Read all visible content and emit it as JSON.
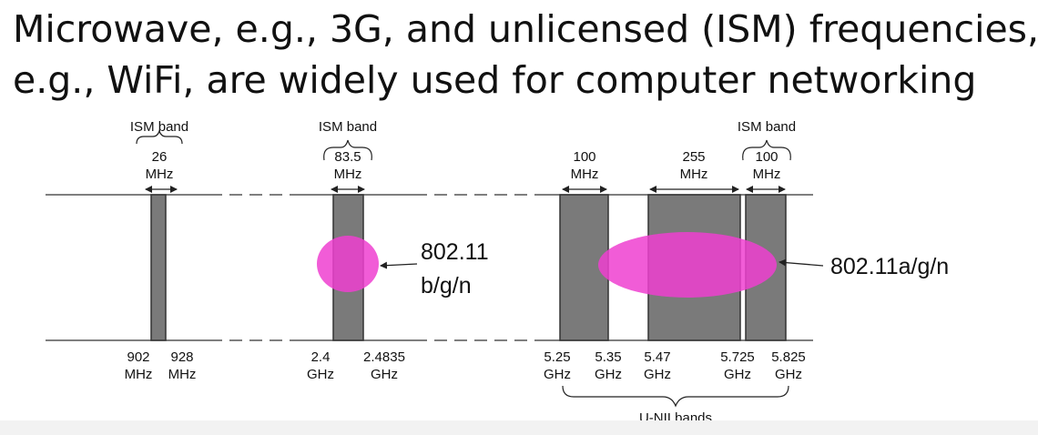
{
  "title": {
    "line1": "Microwave, e.g., 3G, and unlicensed (ISM) frequencies,",
    "line2": "e.g., WiFi, are widely used for computer networking"
  },
  "top_labels": {
    "ism_band_1": "ISM band",
    "width_26_value": "26",
    "width_26_unit": "MHz",
    "ism_band_2": "ISM band",
    "width_835_value": "83.5",
    "width_835_unit": "MHz",
    "width_100a_value": "100",
    "width_100a_unit": "MHz",
    "width_255_value": "255",
    "width_255_unit": "MHz",
    "ism_band_3": "ISM band",
    "width_100b_value": "100",
    "width_100b_unit": "MHz"
  },
  "bottom_labels": {
    "f902_value": "902",
    "f902_unit": "MHz",
    "f928_value": "928",
    "f928_unit": "MHz",
    "f24_value": "2.4",
    "f24_unit": "GHz",
    "f24835_value": "2.4835",
    "f24835_unit": "GHz",
    "f525_value": "5.25",
    "f525_unit": "GHz",
    "f535_value": "5.35",
    "f535_unit": "GHz",
    "f547_value": "5.47",
    "f547_unit": "GHz",
    "f5725_value": "5.725",
    "f5725_unit": "GHz",
    "f5825_value": "5.825",
    "f5825_unit": "GHz",
    "unii": "U-NII bands"
  },
  "annotations": {
    "wifi_24_line1": "802.11",
    "wifi_24_line2": "b/g/n",
    "wifi_5": "802.11a/g/n"
  },
  "colors": {
    "band_fill": "#7a7a7a",
    "band_stroke": "#333333",
    "highlight": "#ee3fd0",
    "axis": "#555555",
    "text": "#111111"
  }
}
